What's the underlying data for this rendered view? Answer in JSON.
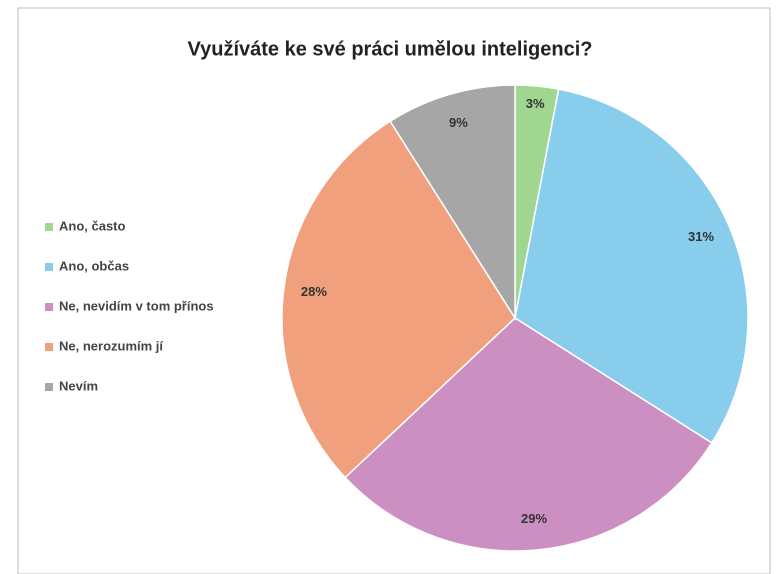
{
  "chart_data": {
    "type": "pie",
    "title": "Využíváte ke své práci umělou inteligenci?",
    "categories": [
      "Ano, často",
      "Ano, občas",
      "Ne, nevidím v tom přínos",
      "Ne, nerozumím jí",
      "Nevím"
    ],
    "values": [
      3,
      31,
      29,
      28,
      9
    ],
    "value_labels": [
      "3%",
      "31%",
      "29%",
      "28%",
      "9%"
    ],
    "colors": [
      "#a0d68f",
      "#88cdec",
      "#cc8fc1",
      "#f0a07d",
      "#a6a6a6"
    ],
    "legend": "left"
  }
}
